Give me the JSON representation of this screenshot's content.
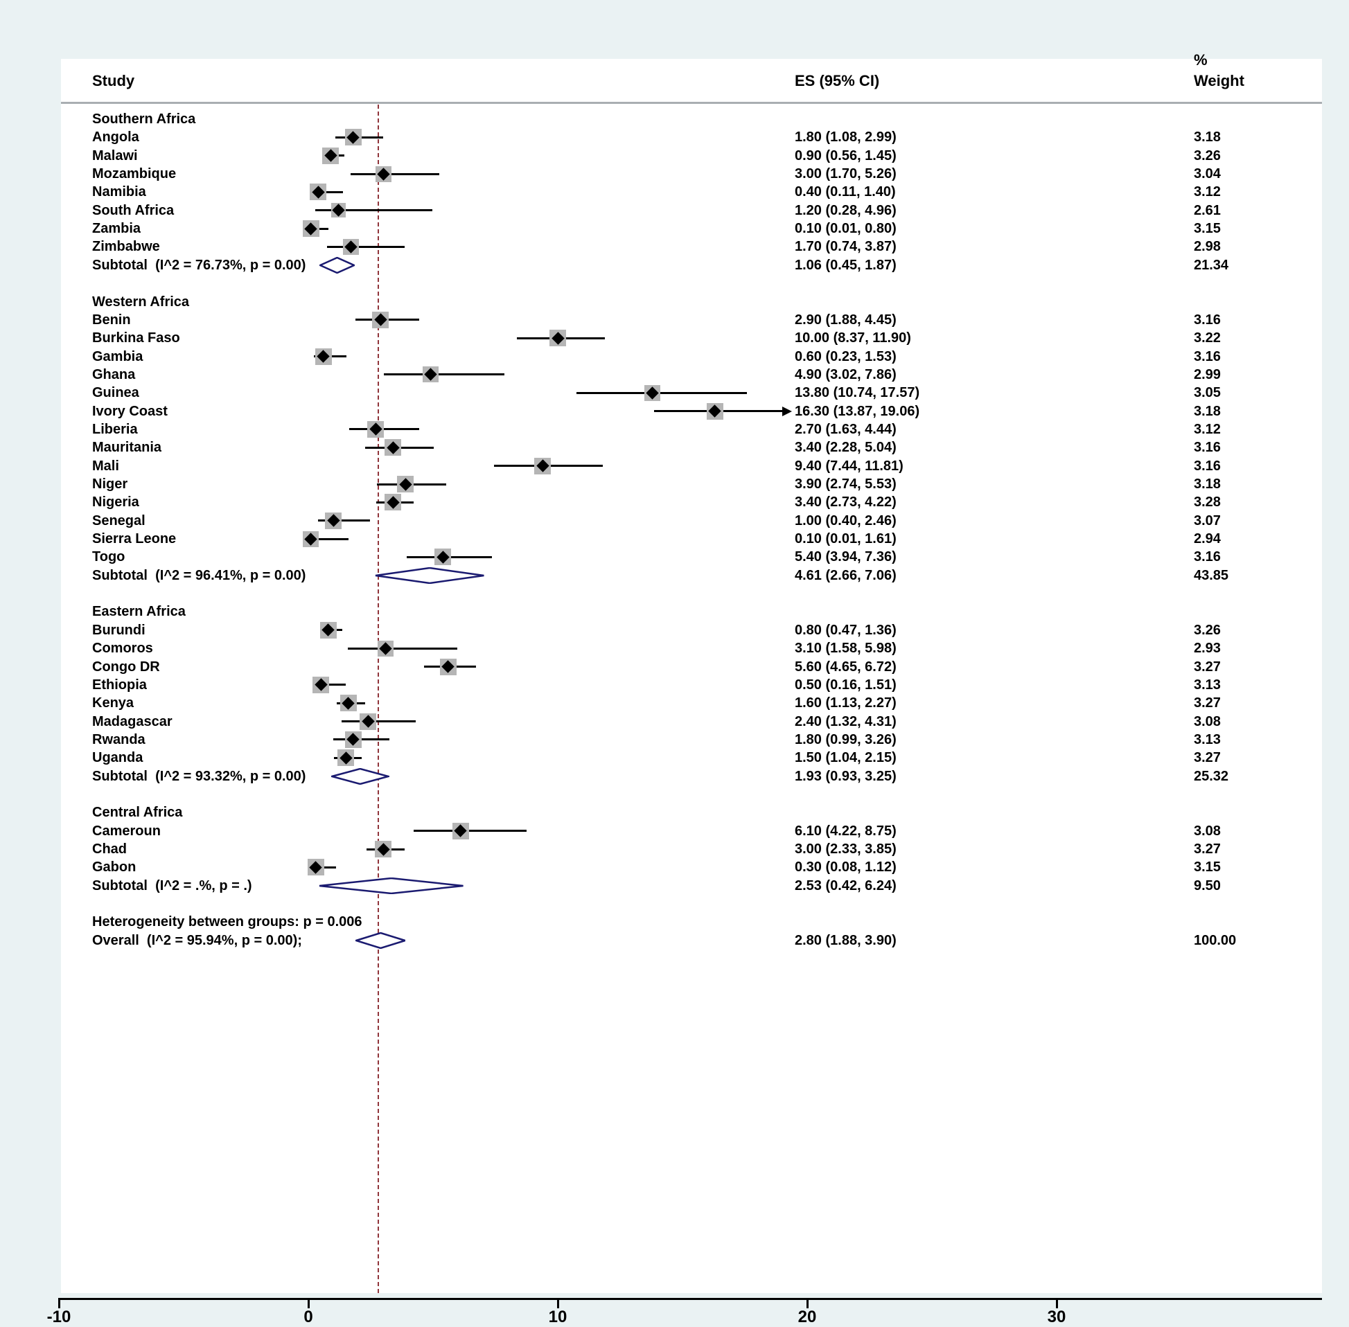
{
  "chart_data": {
    "type": "forest",
    "header": {
      "study": "Study",
      "es": "ES (95% CI)",
      "weight_percent": "%",
      "weight": "Weight"
    },
    "axis": {
      "min": -10,
      "max": 30,
      "ticks": [
        -10,
        0,
        10,
        20,
        30
      ]
    },
    "ref_line": {
      "value": 2.8
    },
    "colors": {
      "background": "#eaf2f3",
      "panel": "#ffffff",
      "ci_line": "#000000",
      "marker": "#000000",
      "weight_box": "#b5b5b5",
      "diamond": "#1a1a70",
      "ref_line": "#90353b",
      "header_rule": "#a9aeb2",
      "axis": "#000000"
    },
    "groups": [
      {
        "name": "Southern Africa",
        "studies": [
          {
            "label": "Angola",
            "es": 1.8,
            "lo": 1.08,
            "hi": 2.99,
            "es_text": "1.80 (1.08, 2.99)",
            "weight": "3.18"
          },
          {
            "label": "Malawi",
            "es": 0.9,
            "lo": 0.56,
            "hi": 1.45,
            "es_text": "0.90 (0.56, 1.45)",
            "weight": "3.26"
          },
          {
            "label": "Mozambique",
            "es": 3.0,
            "lo": 1.7,
            "hi": 5.26,
            "es_text": "3.00 (1.70, 5.26)",
            "weight": "3.04"
          },
          {
            "label": "Namibia",
            "es": 0.4,
            "lo": 0.11,
            "hi": 1.4,
            "es_text": "0.40 (0.11, 1.40)",
            "weight": "3.12"
          },
          {
            "label": "South Africa",
            "es": 1.2,
            "lo": 0.28,
            "hi": 4.96,
            "es_text": "1.20 (0.28, 4.96)",
            "weight": "2.61"
          },
          {
            "label": "Zambia",
            "es": 0.1,
            "lo": 0.01,
            "hi": 0.8,
            "es_text": "0.10 (0.01, 0.80)",
            "weight": "3.15"
          },
          {
            "label": "Zimbabwe",
            "es": 1.7,
            "lo": 0.74,
            "hi": 3.87,
            "es_text": "1.70 (0.74, 3.87)",
            "weight": "2.98"
          }
        ],
        "subtotal": {
          "label": "Subtotal  (I^2 = 76.73%, p = 0.00)",
          "es": 1.06,
          "lo": 0.45,
          "hi": 1.87,
          "es_text": "1.06 (0.45, 1.87)",
          "weight": "21.34"
        }
      },
      {
        "name": "Western Africa",
        "studies": [
          {
            "label": "Benin",
            "es": 2.9,
            "lo": 1.88,
            "hi": 4.45,
            "es_text": "2.90 (1.88, 4.45)",
            "weight": "3.16"
          },
          {
            "label": "Burkina Faso",
            "es": 10.0,
            "lo": 8.37,
            "hi": 11.9,
            "es_text": "10.00 (8.37, 11.90)",
            "weight": "3.22"
          },
          {
            "label": "Gambia",
            "es": 0.6,
            "lo": 0.23,
            "hi": 1.53,
            "es_text": "0.60 (0.23, 1.53)",
            "weight": "3.16"
          },
          {
            "label": "Ghana",
            "es": 4.9,
            "lo": 3.02,
            "hi": 7.86,
            "es_text": "4.90 (3.02, 7.86)",
            "weight": "2.99"
          },
          {
            "label": "Guinea",
            "es": 13.8,
            "lo": 10.74,
            "hi": 17.57,
            "es_text": "13.80 (10.74, 17.57)",
            "weight": "3.05"
          },
          {
            "label": "Ivory Coast",
            "es": 16.3,
            "lo": 13.87,
            "hi": 19.06,
            "es_text": "16.30 (13.87, 19.06)",
            "weight": "3.18",
            "arrow": true
          },
          {
            "label": "Liberia",
            "es": 2.7,
            "lo": 1.63,
            "hi": 4.44,
            "es_text": "2.70 (1.63, 4.44)",
            "weight": "3.12"
          },
          {
            "label": "Mauritania",
            "es": 3.4,
            "lo": 2.28,
            "hi": 5.04,
            "es_text": "3.40 (2.28, 5.04)",
            "weight": "3.16"
          },
          {
            "label": "Mali",
            "es": 9.4,
            "lo": 7.44,
            "hi": 11.81,
            "es_text": "9.40 (7.44, 11.81)",
            "weight": "3.16"
          },
          {
            "label": "Niger",
            "es": 3.9,
            "lo": 2.74,
            "hi": 5.53,
            "es_text": "3.90 (2.74, 5.53)",
            "weight": "3.18"
          },
          {
            "label": "Nigeria",
            "es": 3.4,
            "lo": 2.73,
            "hi": 4.22,
            "es_text": "3.40 (2.73, 4.22)",
            "weight": "3.28"
          },
          {
            "label": "Senegal",
            "es": 1.0,
            "lo": 0.4,
            "hi": 2.46,
            "es_text": "1.00 (0.40, 2.46)",
            "weight": "3.07"
          },
          {
            "label": "Sierra Leone",
            "es": 0.1,
            "lo": 0.01,
            "hi": 1.61,
            "es_text": "0.10 (0.01, 1.61)",
            "weight": "2.94"
          },
          {
            "label": "Togo",
            "es": 5.4,
            "lo": 3.94,
            "hi": 7.36,
            "es_text": "5.40 (3.94, 7.36)",
            "weight": "3.16"
          }
        ],
        "subtotal": {
          "label": "Subtotal  (I^2 = 96.41%, p = 0.00)",
          "es": 4.61,
          "lo": 2.66,
          "hi": 7.06,
          "es_text": "4.61 (2.66, 7.06)",
          "weight": "43.85"
        }
      },
      {
        "name": "Eastern Africa",
        "studies": [
          {
            "label": "Burundi",
            "es": 0.8,
            "lo": 0.47,
            "hi": 1.36,
            "es_text": "0.80 (0.47, 1.36)",
            "weight": "3.26"
          },
          {
            "label": "Comoros",
            "es": 3.1,
            "lo": 1.58,
            "hi": 5.98,
            "es_text": "3.10 (1.58, 5.98)",
            "weight": "2.93"
          },
          {
            "label": "Congo DR",
            "es": 5.6,
            "lo": 4.65,
            "hi": 6.72,
            "es_text": "5.60 (4.65, 6.72)",
            "weight": "3.27"
          },
          {
            "label": "Ethiopia",
            "es": 0.5,
            "lo": 0.16,
            "hi": 1.51,
            "es_text": "0.50 (0.16, 1.51)",
            "weight": "3.13"
          },
          {
            "label": "Kenya",
            "es": 1.6,
            "lo": 1.13,
            "hi": 2.27,
            "es_text": "1.60 (1.13, 2.27)",
            "weight": "3.27"
          },
          {
            "label": "Madagascar",
            "es": 2.4,
            "lo": 1.32,
            "hi": 4.31,
            "es_text": "2.40 (1.32, 4.31)",
            "weight": "3.08"
          },
          {
            "label": "Rwanda",
            "es": 1.8,
            "lo": 0.99,
            "hi": 3.26,
            "es_text": "1.80 (0.99, 3.26)",
            "weight": "3.13"
          },
          {
            "label": "Uganda",
            "es": 1.5,
            "lo": 1.04,
            "hi": 2.15,
            "es_text": "1.50 (1.04, 2.15)",
            "weight": "3.27"
          }
        ],
        "subtotal": {
          "label": "Subtotal  (I^2 = 93.32%, p = 0.00)",
          "es": 1.93,
          "lo": 0.93,
          "hi": 3.25,
          "es_text": "1.93 (0.93, 3.25)",
          "weight": "25.32"
        }
      },
      {
        "name": "Central Africa",
        "studies": [
          {
            "label": "Cameroun",
            "es": 6.1,
            "lo": 4.22,
            "hi": 8.75,
            "es_text": "6.10 (4.22, 8.75)",
            "weight": "3.08"
          },
          {
            "label": "Chad",
            "es": 3.0,
            "lo": 2.33,
            "hi": 3.85,
            "es_text": "3.00 (2.33, 3.85)",
            "weight": "3.27"
          },
          {
            "label": "Gabon",
            "es": 0.3,
            "lo": 0.08,
            "hi": 1.12,
            "es_text": "0.30 (0.08, 1.12)",
            "weight": "3.15"
          }
        ],
        "subtotal": {
          "label": "Subtotal  (I^2 = .%, p = .)",
          "es": 2.53,
          "lo": 0.42,
          "hi": 6.24,
          "es_text": "2.53 (0.42, 6.24)",
          "weight": "9.50"
        }
      }
    ],
    "heterogeneity_note": "Heterogeneity between groups: p = 0.006",
    "overall": {
      "label": "Overall  (I^2 = 95.94%, p = 0.00);",
      "es": 2.8,
      "lo": 1.88,
      "hi": 3.9,
      "es_text": "2.80 (1.88, 3.90)",
      "weight": "100.00"
    }
  }
}
